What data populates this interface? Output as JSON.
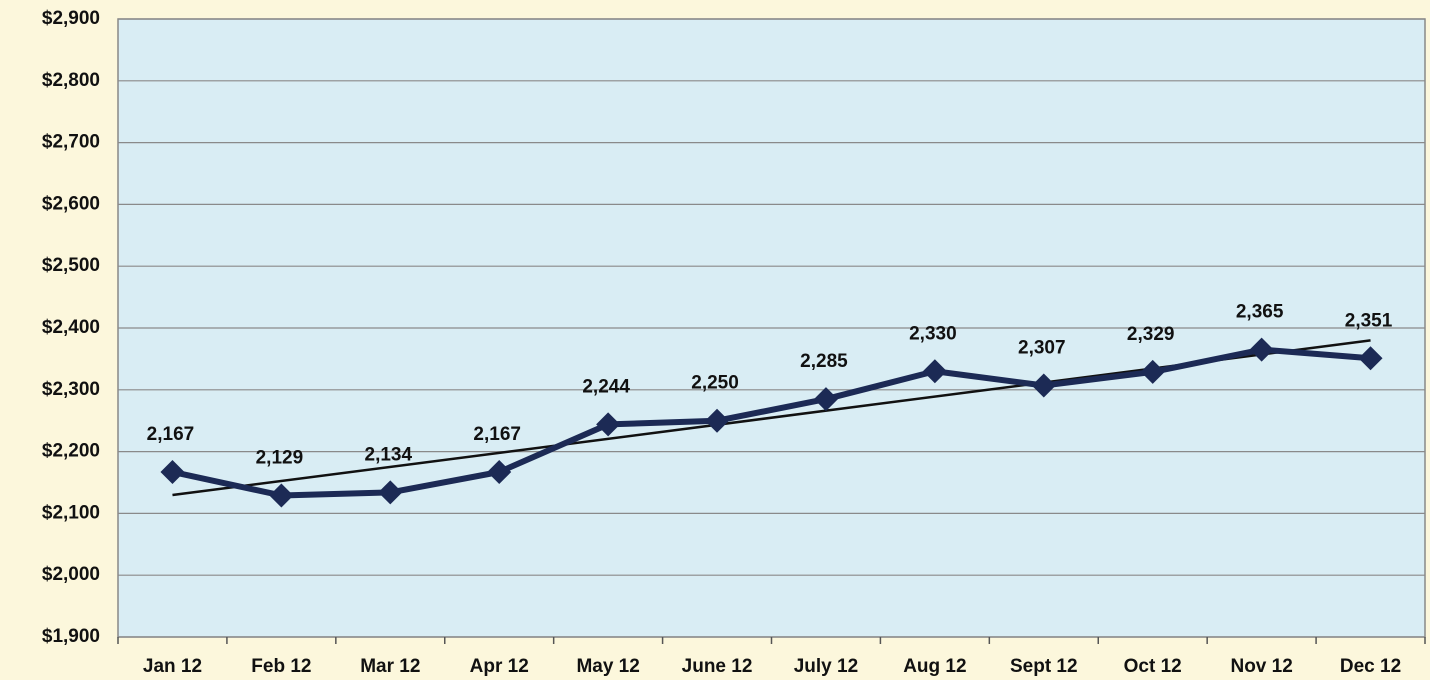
{
  "chart_data": {
    "type": "line",
    "categories": [
      "Jan 12",
      "Feb 12",
      "Mar 12",
      "Apr 12",
      "May 12",
      "June 12",
      "July 12",
      "Aug 12",
      "Sept 12",
      "Oct 12",
      "Nov 12",
      "Dec 12"
    ],
    "values": [
      2167,
      2129,
      2134,
      2167,
      2244,
      2250,
      2285,
      2330,
      2307,
      2329,
      2365,
      2351
    ],
    "value_labels": [
      "2,167",
      "2,129",
      "2,134",
      "2,167",
      "2,244",
      "2,250",
      "2,285",
      "2,330",
      "2,307",
      "2,329",
      "2,365",
      "2,351"
    ],
    "color": "#1c2a55",
    "trendline": "linear",
    "ylim": [
      1900,
      2900
    ],
    "yticks": [
      {
        "value": 1900,
        "label": "$1,900"
      },
      {
        "value": 2000,
        "label": "$2,000"
      },
      {
        "value": 2100,
        "label": "$2,100"
      },
      {
        "value": 2200,
        "label": "$2,200"
      },
      {
        "value": 2300,
        "label": "$2,300"
      },
      {
        "value": 2400,
        "label": "$2,400"
      },
      {
        "value": 2500,
        "label": "$2,500"
      },
      {
        "value": 2600,
        "label": "$2,600"
      },
      {
        "value": 2700,
        "label": "$2,700"
      },
      {
        "value": 2800,
        "label": "$2,800"
      },
      {
        "value": 2900,
        "label": "$2,900"
      }
    ],
    "grid": true
  }
}
